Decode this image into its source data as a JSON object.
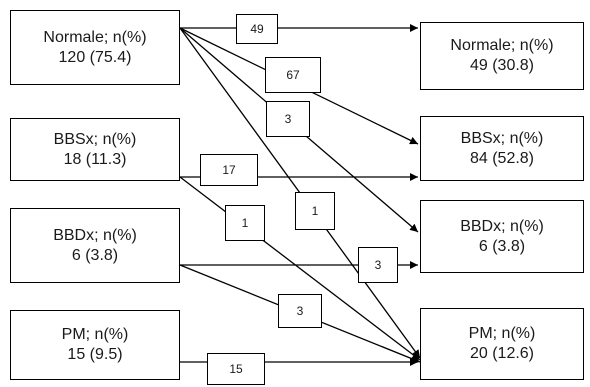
{
  "stroke_color": "#000000",
  "text_color": "#1a1a1a",
  "left_boxes": [
    {
      "line1": "Normale; n(%)",
      "line2": "120 (75.4)"
    },
    {
      "line1": "BBSx; n(%)",
      "line2": "18 (11.3)"
    },
    {
      "line1": "BBDx; n(%)",
      "line2": "6 (3.8)"
    },
    {
      "line1": "PM; n(%)",
      "line2": "15 (9.5)"
    }
  ],
  "right_boxes": [
    {
      "line1": "Normale; n(%)",
      "line2": "49 (30.8)"
    },
    {
      "line1": "BBSx; n(%)",
      "line2": "84 (52.8)"
    },
    {
      "line1": "BBDx; n(%)",
      "line2": "6 (3.8)"
    },
    {
      "line1": "PM; n(%)",
      "line2": "20 (12.6)"
    }
  ],
  "flows": [
    {
      "from": "Normale",
      "to": "Normale",
      "count": "49"
    },
    {
      "from": "Normale",
      "to": "BBSx",
      "count": "67"
    },
    {
      "from": "Normale",
      "to": "BBDx",
      "count": "3"
    },
    {
      "from": "Normale",
      "to": "PM",
      "count": "1"
    },
    {
      "from": "BBSx",
      "to": "BBSx",
      "count": "17"
    },
    {
      "from": "BBSx",
      "to": "PM",
      "count": "1"
    },
    {
      "from": "BBDx",
      "to": "BBDx",
      "count": "3"
    },
    {
      "from": "BBDx",
      "to": "PM",
      "count": "3"
    },
    {
      "from": "PM",
      "to": "PM",
      "count": "15"
    }
  ]
}
